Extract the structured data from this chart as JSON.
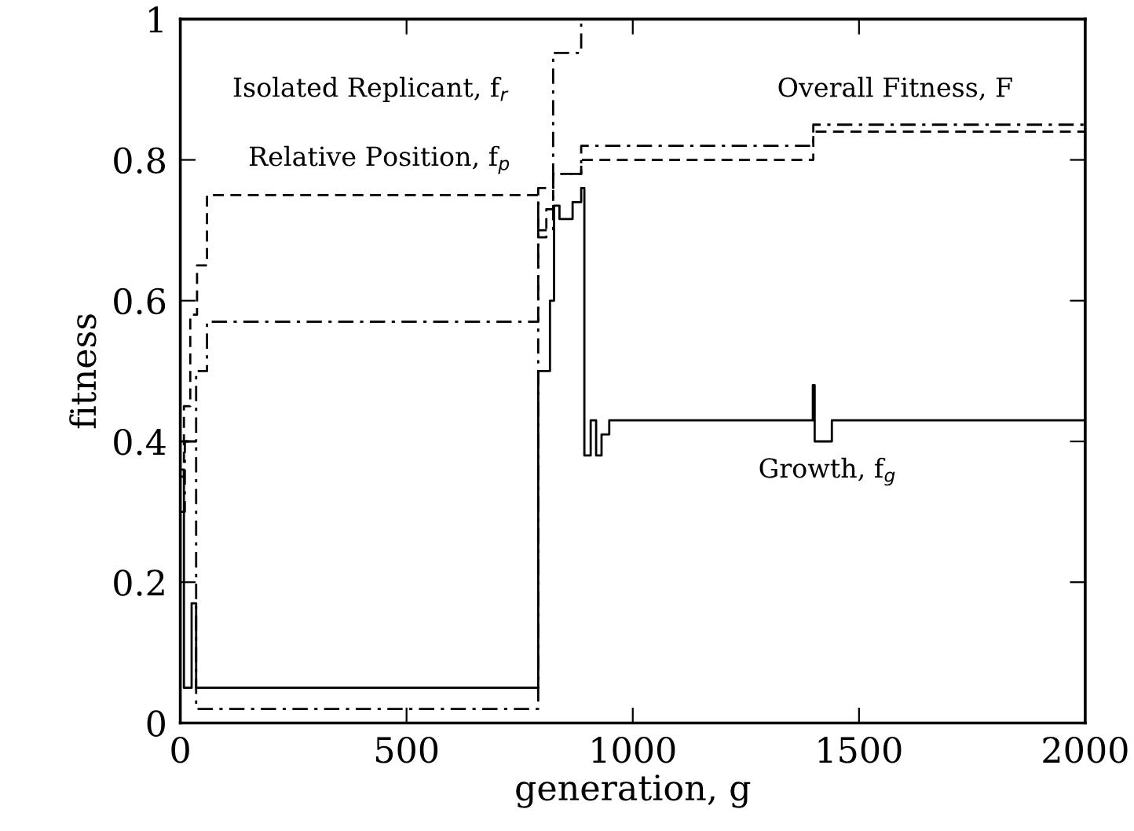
{
  "chart_data": {
    "type": "step",
    "xlabel": "generation, g",
    "ylabel": "fitness",
    "xlim": [
      0,
      2000
    ],
    "ylim": [
      0,
      1
    ],
    "xticks": [
      0,
      500,
      1000,
      1500,
      2000
    ],
    "yticks": [
      0,
      0.2,
      0.4,
      0.6,
      0.8,
      1
    ],
    "grid": false,
    "legend": false,
    "marker": "none",
    "series": [
      {
        "name": "Isolated Replicant, f$_{r}$",
        "color": "#000000",
        "line_style": "dashdot",
        "x": [
          0,
          35,
          791,
          824,
          886,
          2000
        ],
        "values": [
          0.4,
          0.02,
          0.76,
          0.952,
          1.0,
          1.0
        ]
      },
      {
        "name": "Relative Position, f$_{p}$",
        "color": "#000000",
        "line_style": "dashed",
        "x": [
          0,
          8,
          22,
          37,
          59,
          791,
          809,
          824,
          886,
          1399,
          2000
        ],
        "values": [
          0.35,
          0.45,
          0.58,
          0.65,
          0.75,
          0.69,
          0.73,
          0.78,
          0.8,
          0.84,
          0.84
        ]
      },
      {
        "name": "Overall Fitness, F",
        "color": "#000000",
        "line_style": "dashdot",
        "x": [
          0,
          10,
          35,
          59,
          791,
          824,
          886,
          1399,
          2000
        ],
        "values": [
          0.3,
          0.4,
          0.5,
          0.57,
          0.7,
          0.78,
          0.82,
          0.85,
          0.85
        ]
      },
      {
        "name": "Growth, f$_{g}$",
        "color": "#000000",
        "line_style": "solid",
        "x": [
          0,
          8,
          25,
          35,
          791,
          817,
          826,
          838,
          867,
          886,
          893,
          907,
          919,
          931,
          948,
          1398,
          1402,
          1440,
          2000
        ],
        "values": [
          0.36,
          0.05,
          0.17,
          0.05,
          0.5,
          0.6,
          0.735,
          0.716,
          0.74,
          0.76,
          0.38,
          0.43,
          0.38,
          0.41,
          0.43,
          0.48,
          0.4,
          0.43,
          0.43
        ]
      }
    ]
  }
}
